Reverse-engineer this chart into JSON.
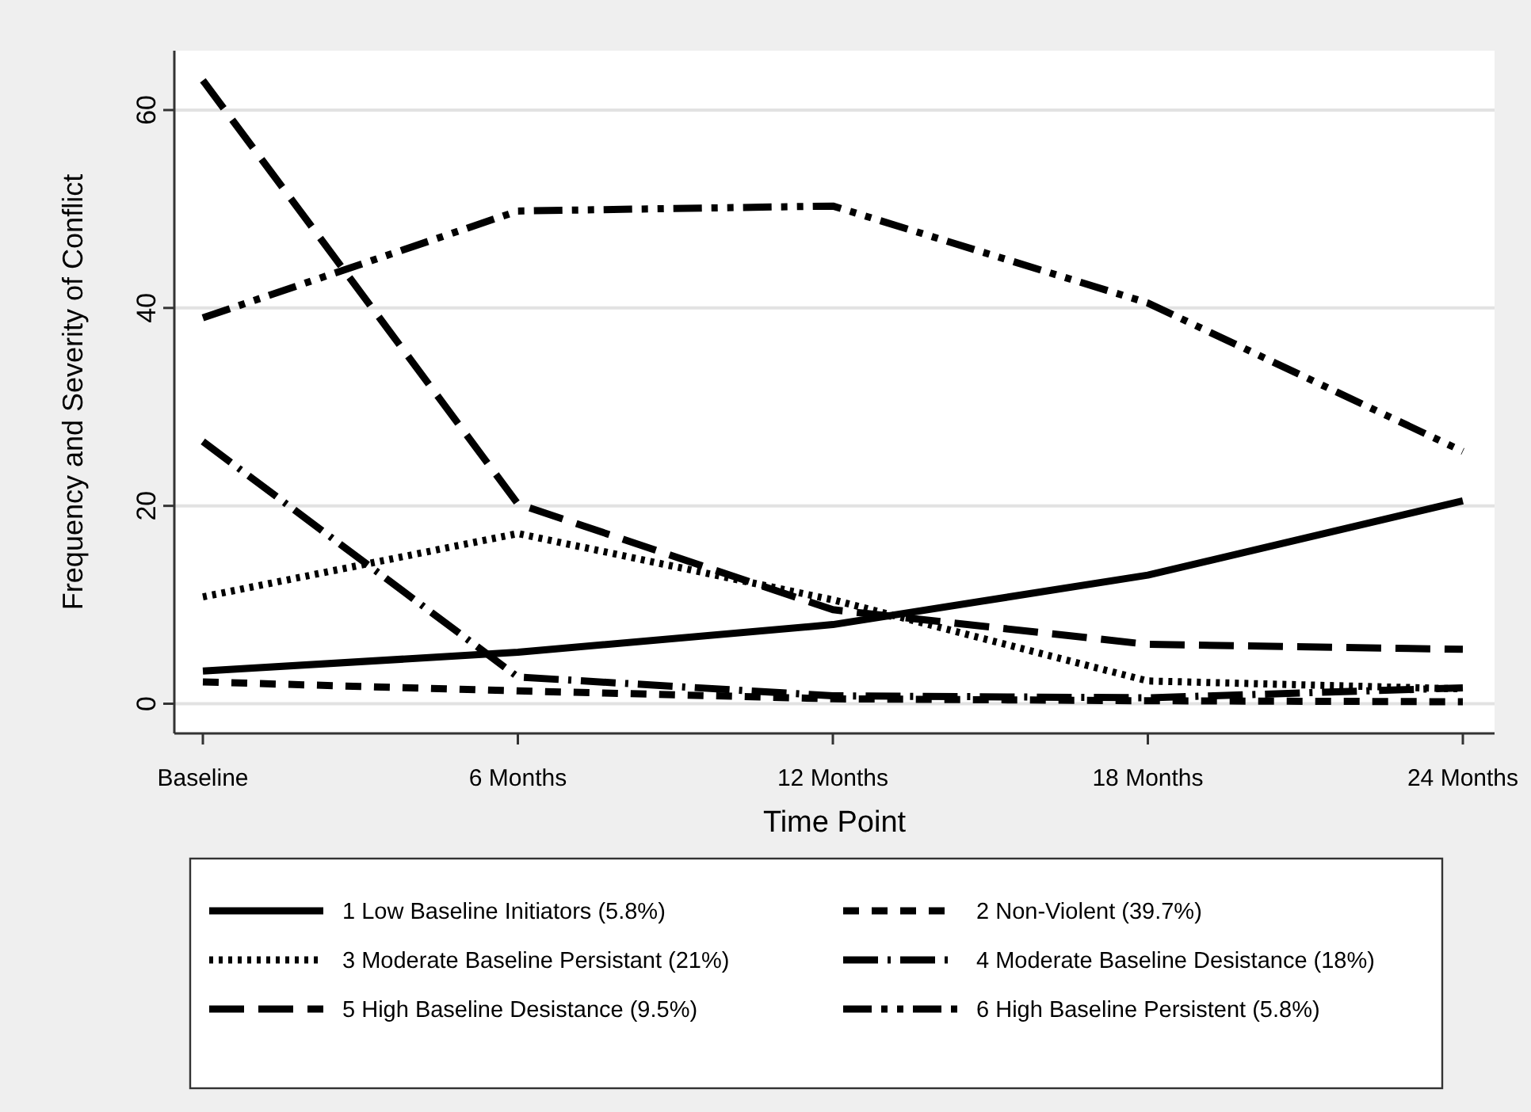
{
  "chart_data": {
    "type": "line",
    "xlabel": "Time Point",
    "ylabel": "Frequency and Severity of Conflict",
    "categories": [
      "Baseline",
      "6 Months",
      "12 Months",
      "18 Months",
      "24 Months"
    ],
    "ylim": [
      -3,
      66
    ],
    "yticks": [
      0,
      20,
      40,
      60
    ],
    "grid": "y",
    "legend": "bottom",
    "series": [
      {
        "name": "1 Low Baseline Initiators (5.8%)",
        "color": "#000000",
        "line_style": "solid",
        "values": [
          3.3,
          5.2,
          8,
          13,
          20.5
        ]
      },
      {
        "name": "2 Non-Violent (39.7%)",
        "color": "#000000",
        "line_style": "dashed",
        "values": [
          2.2,
          1.3,
          0.5,
          0.3,
          0.2
        ]
      },
      {
        "name": "3 Moderate Baseline Persistant (21%)",
        "color": "#000000",
        "line_style": "dotted",
        "values": [
          10.8,
          17.2,
          10.5,
          2.3,
          1.5
        ]
      },
      {
        "name": "4 Moderate Baseline Desistance (18%)",
        "color": "#000000",
        "line_style": "longdashdot",
        "values": [
          26.5,
          2.7,
          0.8,
          0.6,
          1.6
        ]
      },
      {
        "name": "5 High Baseline Desistance (9.5%)",
        "color": "#000000",
        "line_style": "longdash",
        "values": [
          63,
          20.2,
          9.5,
          6,
          5.5
        ]
      },
      {
        "name": "6 High Baseline Persistent (5.8%)",
        "color": "#000000",
        "line_style": "dashdotdot",
        "values": [
          39,
          49.8,
          50.3,
          40.5,
          25.5
        ]
      }
    ]
  }
}
